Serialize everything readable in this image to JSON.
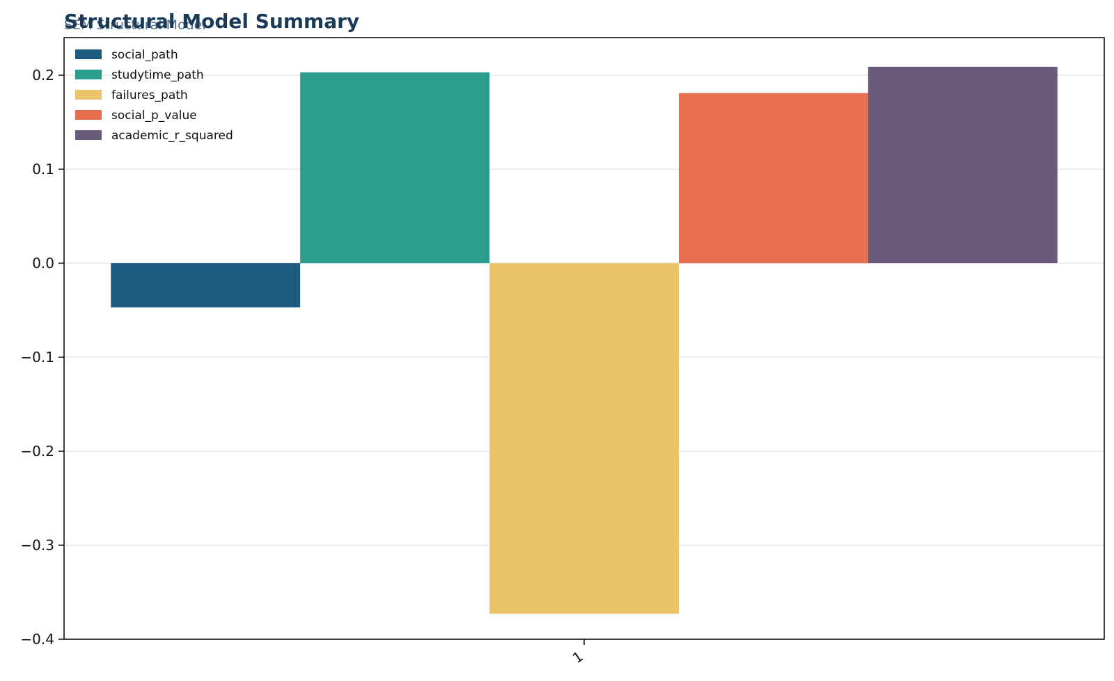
{
  "chart_data": {
    "type": "bar",
    "title": "Structural Model Summary",
    "subtitle": "SEM Structural Model",
    "xlabel": "",
    "ylabel": "",
    "categories": [
      "1"
    ],
    "series": [
      {
        "name": "social_path",
        "values": [
          -0.047
        ],
        "color": "#1f5a82"
      },
      {
        "name": "studytime_path",
        "values": [
          0.203
        ],
        "color": "#2a9d8f"
      },
      {
        "name": "failures_path",
        "values": [
          -0.373
        ],
        "color": "#e9c46a"
      },
      {
        "name": "social_p_value",
        "values": [
          0.181
        ],
        "color": "#e76f51"
      },
      {
        "name": "academic_r_squared",
        "values": [
          0.209
        ],
        "color": "#6b5b7b"
      }
    ],
    "ylim": [
      -0.4,
      0.24
    ],
    "yticks": [
      -0.4,
      -0.3,
      -0.2,
      -0.1,
      0.0,
      0.1,
      0.2
    ],
    "ytick_labels": [
      "−0.4",
      "−0.3",
      "−0.2",
      "−0.1",
      "0.0",
      "0.1",
      "0.2"
    ],
    "grid": true,
    "legend_position": "top-left"
  }
}
